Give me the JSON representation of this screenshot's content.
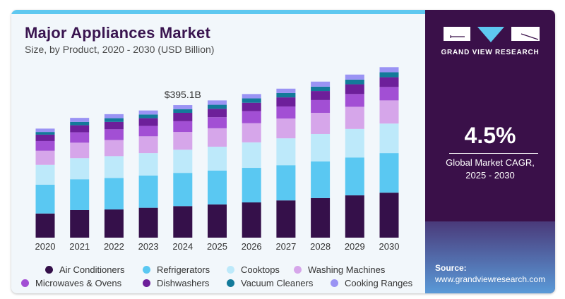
{
  "header": {
    "title": "Major Appliances Market",
    "subtitle": "Size, by Product, 2020 - 2030 (USD Billion)"
  },
  "side_panel": {
    "brand": "GRAND VIEW RESEARCH",
    "cagr_value": "4.5%",
    "cagr_label_line1": "Global Market CAGR,",
    "cagr_label_line2": "2025 - 2030",
    "source_label": "Source:",
    "source_url": "www.grandviewresearch.com"
  },
  "colors": {
    "title": "#3a1550",
    "accent_bar": "#5ec8f0",
    "side_panel": "#3a1049"
  },
  "chart_data": {
    "type": "bar",
    "stacked": true,
    "title": "Major Appliances Market",
    "subtitle": "Size, by Product, 2020 - 2030 (USD Billion)",
    "xlabel": "",
    "ylabel": "USD Billion",
    "ylim": [
      0,
      520
    ],
    "grid": false,
    "legend_position": "bottom",
    "categories": [
      "2020",
      "2021",
      "2022",
      "2023",
      "2024",
      "2025",
      "2026",
      "2027",
      "2028",
      "2029",
      "2030"
    ],
    "annotations": [
      {
        "category": "2024",
        "text": "$395.1B"
      }
    ],
    "series": [
      {
        "name": "Air Conditioners",
        "color": "#35104a",
        "values": [
          72,
          82,
          84,
          89,
          94,
          99,
          105,
          111,
          118,
          126,
          134
        ]
      },
      {
        "name": "Refrigerators",
        "color": "#5ac8f2",
        "values": [
          86,
          92,
          94,
          96,
          99,
          101,
          103,
          105,
          109,
          113,
          118
        ]
      },
      {
        "name": "Cooktops",
        "color": "#bde9fa",
        "values": [
          59,
          63,
          65,
          67,
          69,
          71,
          76,
          80,
          82,
          85,
          88
        ]
      },
      {
        "name": "Washing Machines",
        "color": "#d6a6ea",
        "values": [
          42,
          46,
          48,
          50,
          53,
          55,
          57,
          59,
          63,
          66,
          69
        ]
      },
      {
        "name": "Microwaves & Ovens",
        "color": "#a24fd4",
        "values": [
          29,
          31,
          32,
          31,
          32,
          33,
          36,
          36,
          38,
          38,
          40
        ]
      },
      {
        "name": "Dishwashers",
        "color": "#6d1f9a",
        "values": [
          19,
          21,
          22,
          23,
          25,
          25,
          25,
          27,
          27,
          29,
          29
        ]
      },
      {
        "name": "Vacuum Cleaners",
        "color": "#137a9a",
        "values": [
          8,
          10,
          11,
          11,
          11,
          12,
          13,
          13,
          13,
          14,
          15
        ]
      },
      {
        "name": "Cooking Ranges",
        "color": "#9a93f4",
        "values": [
          10,
          12,
          12,
          12,
          12,
          13,
          13,
          13,
          15,
          15,
          15
        ]
      }
    ]
  }
}
